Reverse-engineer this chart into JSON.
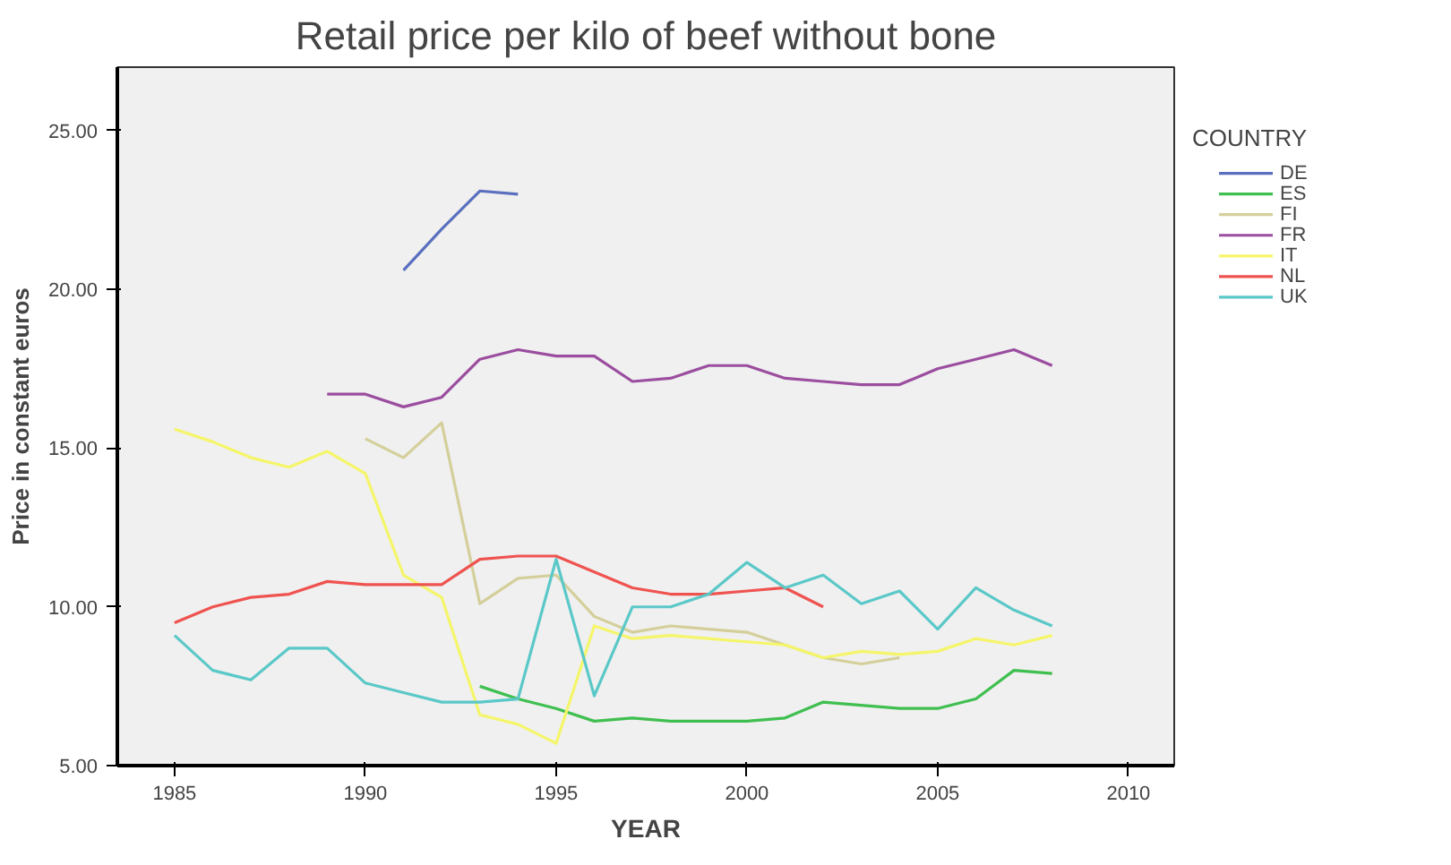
{
  "chart_data": {
    "type": "line",
    "title": "Retail price per kilo of beef without bone",
    "xlabel": "YEAR",
    "ylabel": "Price in constant euros",
    "legend_title": "COUNTRY",
    "xlim": [
      1983.5,
      2011.2
    ],
    "ylim": [
      5,
      27
    ],
    "xticks": [
      1985,
      1990,
      1995,
      2000,
      2005,
      2010
    ],
    "yticks": [
      {
        "value": 5,
        "label": "5.00"
      },
      {
        "value": 10,
        "label": "10.00"
      },
      {
        "value": 15,
        "label": "15.00"
      },
      {
        "value": 20,
        "label": "20.00"
      },
      {
        "value": 25,
        "label": "25.00"
      }
    ],
    "grid": false,
    "legend": "right",
    "marker": "none",
    "line_style": "solid",
    "series": [
      {
        "name": "DE",
        "color": "#5a6fbf",
        "x": [
          1991,
          1992,
          1993,
          1994
        ],
        "values": [
          20.6,
          21.9,
          23.1,
          23.0
        ]
      },
      {
        "name": "ES",
        "color": "#3fbf4f",
        "x": [
          1993,
          1994,
          1995,
          1996,
          1997,
          1998,
          1999,
          2000,
          2001,
          2002,
          2003,
          2004,
          2005,
          2006,
          2007,
          2008
        ],
        "values": [
          7.5,
          7.1,
          6.8,
          6.4,
          6.5,
          6.4,
          6.4,
          6.4,
          6.5,
          7.0,
          6.9,
          6.8,
          6.8,
          7.1,
          8.0,
          7.9
        ]
      },
      {
        "name": "FI",
        "color": "#d4cf9a",
        "x": [
          1990,
          1991,
          1992,
          1993,
          1994,
          1995,
          1996,
          1997,
          1998,
          1999,
          2000,
          2001,
          2002,
          2003,
          2004
        ],
        "values": [
          15.3,
          14.7,
          15.8,
          10.1,
          10.9,
          11.0,
          9.7,
          9.2,
          9.4,
          9.3,
          9.2,
          8.8,
          8.4,
          8.2,
          8.4
        ]
      },
      {
        "name": "FR",
        "color": "#9b4d9f",
        "x": [
          1989,
          1990,
          1991,
          1992,
          1993,
          1994,
          1995,
          1996,
          1997,
          1998,
          1999,
          2000,
          2001,
          2002,
          2003,
          2004,
          2005,
          2006,
          2007,
          2008
        ],
        "values": [
          16.7,
          16.7,
          16.3,
          16.6,
          17.8,
          18.1,
          17.9,
          17.9,
          17.1,
          17.2,
          17.6,
          17.6,
          17.2,
          17.1,
          17.0,
          17.0,
          17.5,
          17.8,
          18.1,
          17.6
        ]
      },
      {
        "name": "IT",
        "color": "#f5f56a",
        "x": [
          1985,
          1986,
          1987,
          1988,
          1989,
          1990,
          1991,
          1992,
          1993,
          1994,
          1995,
          1996,
          1997,
          1998,
          1999,
          2000,
          2001,
          2002,
          2003,
          2004,
          2005,
          2006,
          2007,
          2008
        ],
        "values": [
          15.6,
          15.2,
          14.7,
          14.4,
          14.9,
          14.2,
          11.0,
          10.3,
          6.6,
          6.3,
          5.7,
          9.4,
          9.0,
          9.1,
          9.0,
          8.9,
          8.8,
          8.4,
          8.6,
          8.5,
          8.6,
          9.0,
          8.8,
          9.1
        ]
      },
      {
        "name": "NL",
        "color": "#ef5350",
        "x": [
          1985,
          1986,
          1987,
          1988,
          1989,
          1990,
          1991,
          1992,
          1993,
          1994,
          1995,
          1996,
          1997,
          1998,
          1999,
          2000,
          2001,
          2002
        ],
        "values": [
          9.5,
          10.0,
          10.3,
          10.4,
          10.8,
          10.7,
          10.7,
          10.7,
          11.5,
          11.6,
          11.6,
          11.1,
          10.6,
          10.4,
          10.4,
          10.5,
          10.6,
          10.0
        ]
      },
      {
        "name": "UK",
        "color": "#5bc8c8",
        "x": [
          1985,
          1986,
          1987,
          1988,
          1989,
          1990,
          1991,
          1992,
          1993,
          1994,
          1995,
          1996,
          1997,
          1998,
          1999,
          2000,
          2001,
          2002,
          2003,
          2004,
          2005,
          2006,
          2007,
          2008
        ],
        "values": [
          9.1,
          8.0,
          7.7,
          8.7,
          8.7,
          7.6,
          7.3,
          7.0,
          7.0,
          7.1,
          11.5,
          7.2,
          10.0,
          10.0,
          10.4,
          11.4,
          10.6,
          11.0,
          10.1,
          10.5,
          9.3,
          10.6,
          9.9,
          9.4
        ]
      }
    ]
  }
}
